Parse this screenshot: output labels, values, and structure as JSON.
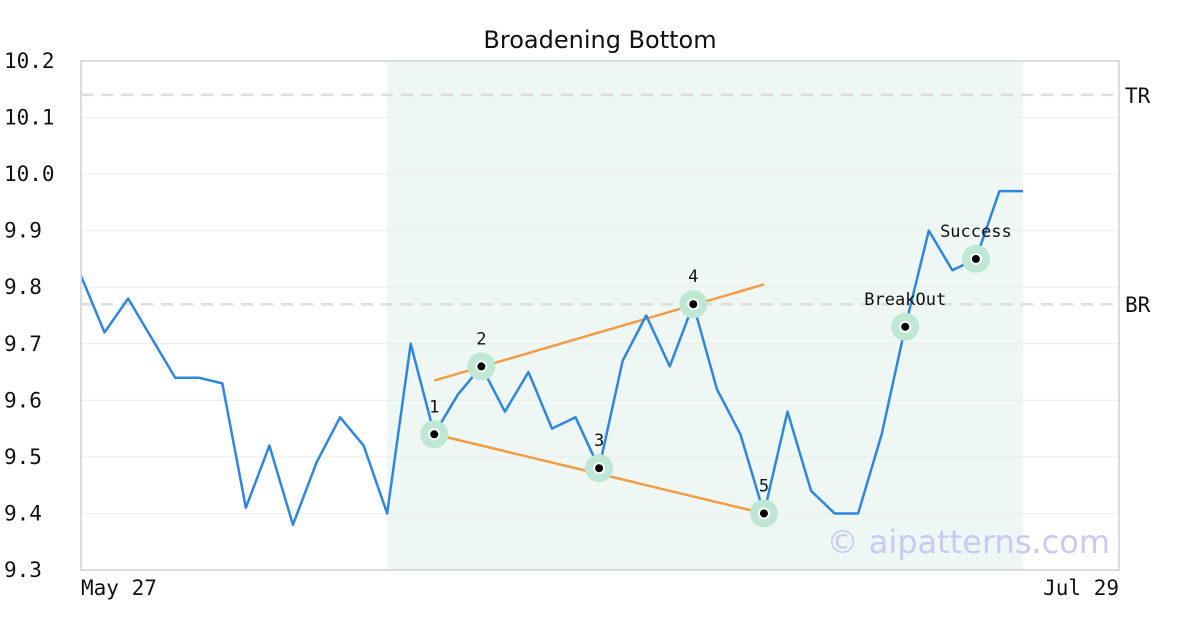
{
  "chart_data": {
    "type": "line",
    "title": "Broadening Bottom",
    "xlabel": "",
    "ylabel": "",
    "ylim": [
      9.3,
      10.2
    ],
    "yticks": [
      "9.3",
      "9.4",
      "9.5",
      "9.6",
      "9.7",
      "9.8",
      "9.9",
      "10.0",
      "10.1",
      "10.2"
    ],
    "xticks": [
      "May 27",
      "Jul 29"
    ],
    "grid": true,
    "series": [
      {
        "values": [
          9.82,
          9.72,
          9.78,
          9.71,
          9.64,
          9.64,
          9.63,
          9.41,
          9.52,
          9.38,
          9.49,
          9.57,
          9.52,
          9.4,
          9.7,
          9.54,
          9.61,
          9.66,
          9.58,
          9.65,
          9.55,
          9.57,
          9.48,
          9.67,
          9.75,
          9.66,
          9.77,
          9.62,
          9.54,
          9.4,
          9.58,
          9.44,
          9.4,
          9.4,
          9.54,
          9.73,
          9.9,
          9.83,
          9.85,
          9.97,
          9.97
        ],
        "color": "#2e86de"
      }
    ],
    "pattern_range_index": [
      13,
      40
    ],
    "levels": [
      {
        "label": "TR",
        "value": 10.14
      },
      {
        "label": "BR",
        "value": 9.77
      }
    ],
    "trendlines": [
      {
        "from": [
          15,
          9.635
        ],
        "to": [
          29,
          9.805
        ],
        "color": "#f39c44"
      },
      {
        "from": [
          15,
          9.54
        ],
        "to": [
          29,
          9.4
        ],
        "color": "#f39c44"
      }
    ],
    "points": [
      {
        "label": "1",
        "index": 15,
        "value": 9.54
      },
      {
        "label": "2",
        "index": 17,
        "value": 9.66
      },
      {
        "label": "3",
        "index": 22,
        "value": 9.48
      },
      {
        "label": "4",
        "index": 26,
        "value": 9.77
      },
      {
        "label": "5",
        "index": 29,
        "value": 9.4
      },
      {
        "label": "BreakOut",
        "index": 35,
        "value": 9.73
      },
      {
        "label": "Success",
        "index": 38,
        "value": 9.85
      }
    ],
    "watermark": "© aipatterns.com"
  },
  "colors": {
    "line": "#2e86de",
    "trend": "#f39c44",
    "shade": "#eef7f3",
    "marker_halo": "#bfe8d4",
    "level_line": "#dddddd",
    "grid": "#ececec",
    "frame": "#dcdcdc"
  }
}
